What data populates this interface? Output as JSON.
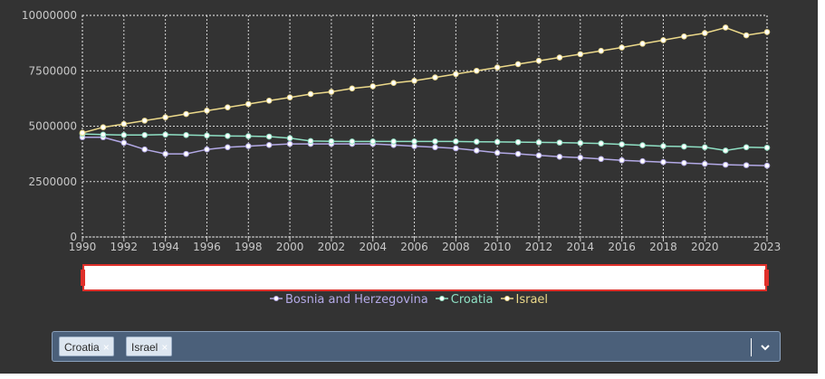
{
  "chart_data": {
    "type": "line",
    "x": [
      1990,
      1991,
      1992,
      1993,
      1994,
      1995,
      1996,
      1997,
      1998,
      1999,
      2000,
      2001,
      2002,
      2003,
      2004,
      2005,
      2006,
      2007,
      2008,
      2009,
      2010,
      2011,
      2012,
      2013,
      2014,
      2015,
      2016,
      2017,
      2018,
      2019,
      2020,
      2021,
      2022,
      2023
    ],
    "xticks": [
      "1990",
      "1992",
      "1994",
      "1996",
      "1998",
      "2000",
      "2002",
      "2004",
      "2006",
      "2008",
      "2010",
      "2012",
      "2014",
      "2016",
      "2018",
      "2020",
      "2023"
    ],
    "yticks": [
      "0",
      "2500000",
      "5000000",
      "7500000",
      "10000000"
    ],
    "ylim": [
      0,
      10000000
    ],
    "xlim": [
      1990,
      2023
    ],
    "grid": true,
    "legend_position": "bottom",
    "series": [
      {
        "name": "Bosnia and Herzegovina",
        "color": "#b3a9e6",
        "values": [
          4500000,
          4500000,
          4250000,
          3950000,
          3750000,
          3750000,
          3950000,
          4050000,
          4100000,
          4150000,
          4200000,
          4200000,
          4200000,
          4200000,
          4200000,
          4150000,
          4100000,
          4050000,
          4000000,
          3900000,
          3800000,
          3750000,
          3680000,
          3620000,
          3580000,
          3520000,
          3460000,
          3420000,
          3380000,
          3340000,
          3300000,
          3260000,
          3240000,
          3220000
        ]
      },
      {
        "name": "Croatia",
        "color": "#8fe0c4",
        "values": [
          4650000,
          4620000,
          4600000,
          4600000,
          4620000,
          4600000,
          4580000,
          4560000,
          4550000,
          4530000,
          4460000,
          4330000,
          4320000,
          4310000,
          4310000,
          4310000,
          4310000,
          4310000,
          4310000,
          4300000,
          4290000,
          4280000,
          4270000,
          4260000,
          4240000,
          4220000,
          4180000,
          4140000,
          4100000,
          4080000,
          4050000,
          3900000,
          4050000,
          4030000
        ]
      },
      {
        "name": "Israel",
        "color": "#ecd98a",
        "values": [
          4700000,
          4950000,
          5100000,
          5250000,
          5400000,
          5550000,
          5700000,
          5850000,
          6000000,
          6150000,
          6300000,
          6450000,
          6550000,
          6700000,
          6800000,
          6950000,
          7050000,
          7200000,
          7350000,
          7500000,
          7650000,
          7800000,
          7950000,
          8100000,
          8250000,
          8400000,
          8550000,
          8720000,
          8880000,
          9050000,
          9200000,
          9450000,
          9100000,
          9250000
        ]
      }
    ]
  },
  "selector": {
    "chips": [
      {
        "label": "Croatia",
        "remove": "×"
      },
      {
        "label": "Israel",
        "remove": "×"
      }
    ],
    "dropdown_icon": "chevron-down-icon"
  },
  "colors": {
    "background": "#333333",
    "grid": "#ffffff",
    "navigator_fill": "#ffffff",
    "navigator_border": "#e0302a",
    "selector_fill": "#4b607a"
  }
}
